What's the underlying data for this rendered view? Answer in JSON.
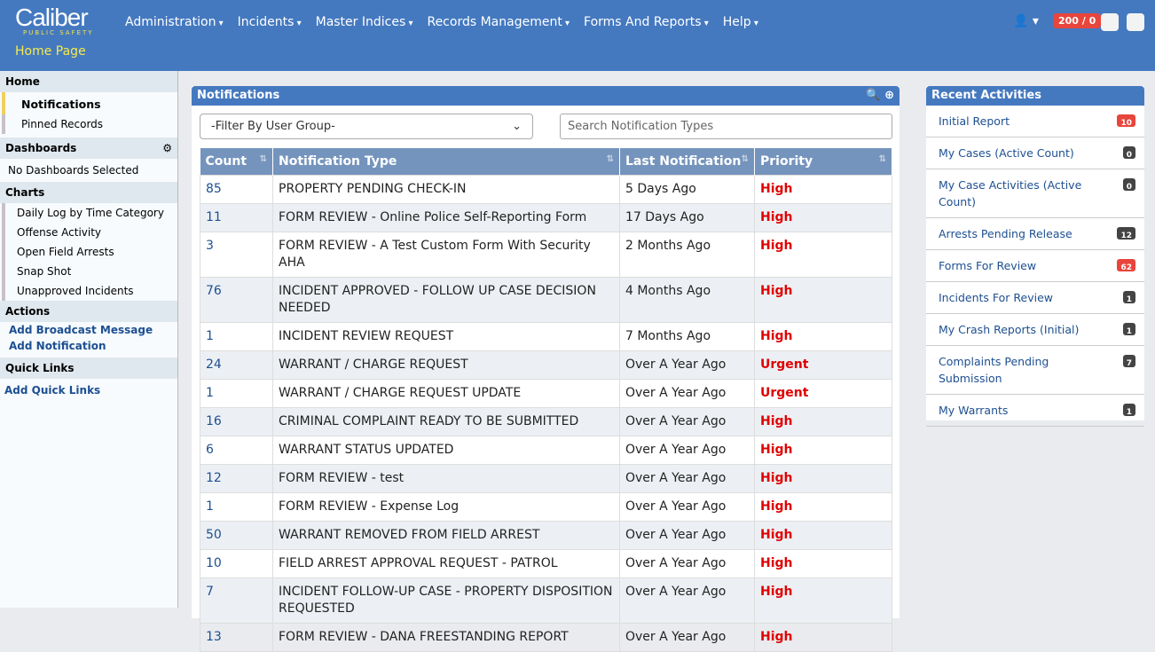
{
  "header": {
    "logo": "Caliber",
    "logo_sub": "PUBLIC SAFETY",
    "page_title": "Home Page",
    "nav": [
      "Administration",
      "Incidents",
      "Master Indices",
      "Records Management",
      "Forms And Reports",
      "Help"
    ],
    "counter": "200 / 0"
  },
  "sidebar": {
    "home": "Home",
    "home_items": [
      "Notifications",
      "Pinned Records"
    ],
    "dashboards": "Dashboards",
    "dashboards_empty": "No Dashboards Selected",
    "charts": "Charts",
    "chart_items": [
      "Daily Log by Time Category",
      "Offense Activity",
      "Open Field Arrests",
      "Snap Shot",
      "Unapproved Incidents"
    ],
    "actions": "Actions",
    "action_items": [
      "Add Broadcast Message",
      "Add Notification"
    ],
    "quick_links": "Quick Links",
    "quick_link_items": [
      "Add Quick Links"
    ]
  },
  "notifications": {
    "title": "Notifications",
    "filter": "-Filter By User Group-",
    "search_placeholder": "Search Notification Types",
    "columns": [
      "Count",
      "Notification Type",
      "Last Notification",
      "Priority"
    ],
    "rows": [
      [
        85,
        "PROPERTY PENDING CHECK-IN",
        "5 Days Ago",
        "High"
      ],
      [
        11,
        "FORM REVIEW - Online Police Self-Reporting Form",
        "17 Days Ago",
        "High"
      ],
      [
        3,
        "FORM REVIEW - A Test Custom Form With Security AHA",
        "2 Months Ago",
        "High"
      ],
      [
        76,
        "INCIDENT APPROVED - FOLLOW UP CASE DECISION NEEDED",
        "4 Months Ago",
        "High"
      ],
      [
        1,
        "INCIDENT REVIEW REQUEST",
        "7 Months Ago",
        "High"
      ],
      [
        24,
        "WARRANT / CHARGE REQUEST",
        "Over A Year Ago",
        "Urgent"
      ],
      [
        1,
        "WARRANT / CHARGE REQUEST UPDATE",
        "Over A Year Ago",
        "Urgent"
      ],
      [
        16,
        "CRIMINAL COMPLAINT READY TO BE SUBMITTED",
        "Over A Year Ago",
        "High"
      ],
      [
        6,
        "WARRANT STATUS UPDATED",
        "Over A Year Ago",
        "High"
      ],
      [
        12,
        "FORM REVIEW - test",
        "Over A Year Ago",
        "High"
      ],
      [
        1,
        "FORM REVIEW - Expense Log",
        "Over A Year Ago",
        "High"
      ],
      [
        50,
        "WARRANT REMOVED FROM FIELD ARREST",
        "Over A Year Ago",
        "High"
      ],
      [
        10,
        "FIELD ARREST APPROVAL REQUEST - PATROL",
        "Over A Year Ago",
        "High"
      ],
      [
        7,
        "INCIDENT FOLLOW-UP CASE - PROPERTY DISPOSITION REQUESTED",
        "Over A Year Ago",
        "High"
      ],
      [
        13,
        "FORM REVIEW - DANA FREESTANDING REPORT",
        "Over A Year Ago",
        "High"
      ]
    ]
  },
  "recent": {
    "title": "Recent Activities",
    "items": [
      {
        "label": "Initial Report",
        "count": 10,
        "color": "#e8453c"
      },
      {
        "label": "My Cases (Active Count)",
        "count": 0,
        "color": "#444"
      },
      {
        "label": "My Case Activities (Active Count)",
        "count": 0,
        "color": "#444"
      },
      {
        "label": "Arrests Pending Release",
        "count": 12,
        "color": "#444"
      },
      {
        "label": "Forms For Review",
        "count": 62,
        "color": "#e8453c"
      },
      {
        "label": "Incidents For Review",
        "count": 1,
        "color": "#444"
      },
      {
        "label": "My Crash Reports (Initial)",
        "count": 1,
        "color": "#444"
      },
      {
        "label": "Complaints Pending Submission",
        "count": 7,
        "color": "#444"
      },
      {
        "label": "My Warrants",
        "count": 1,
        "color": "#444"
      }
    ]
  }
}
